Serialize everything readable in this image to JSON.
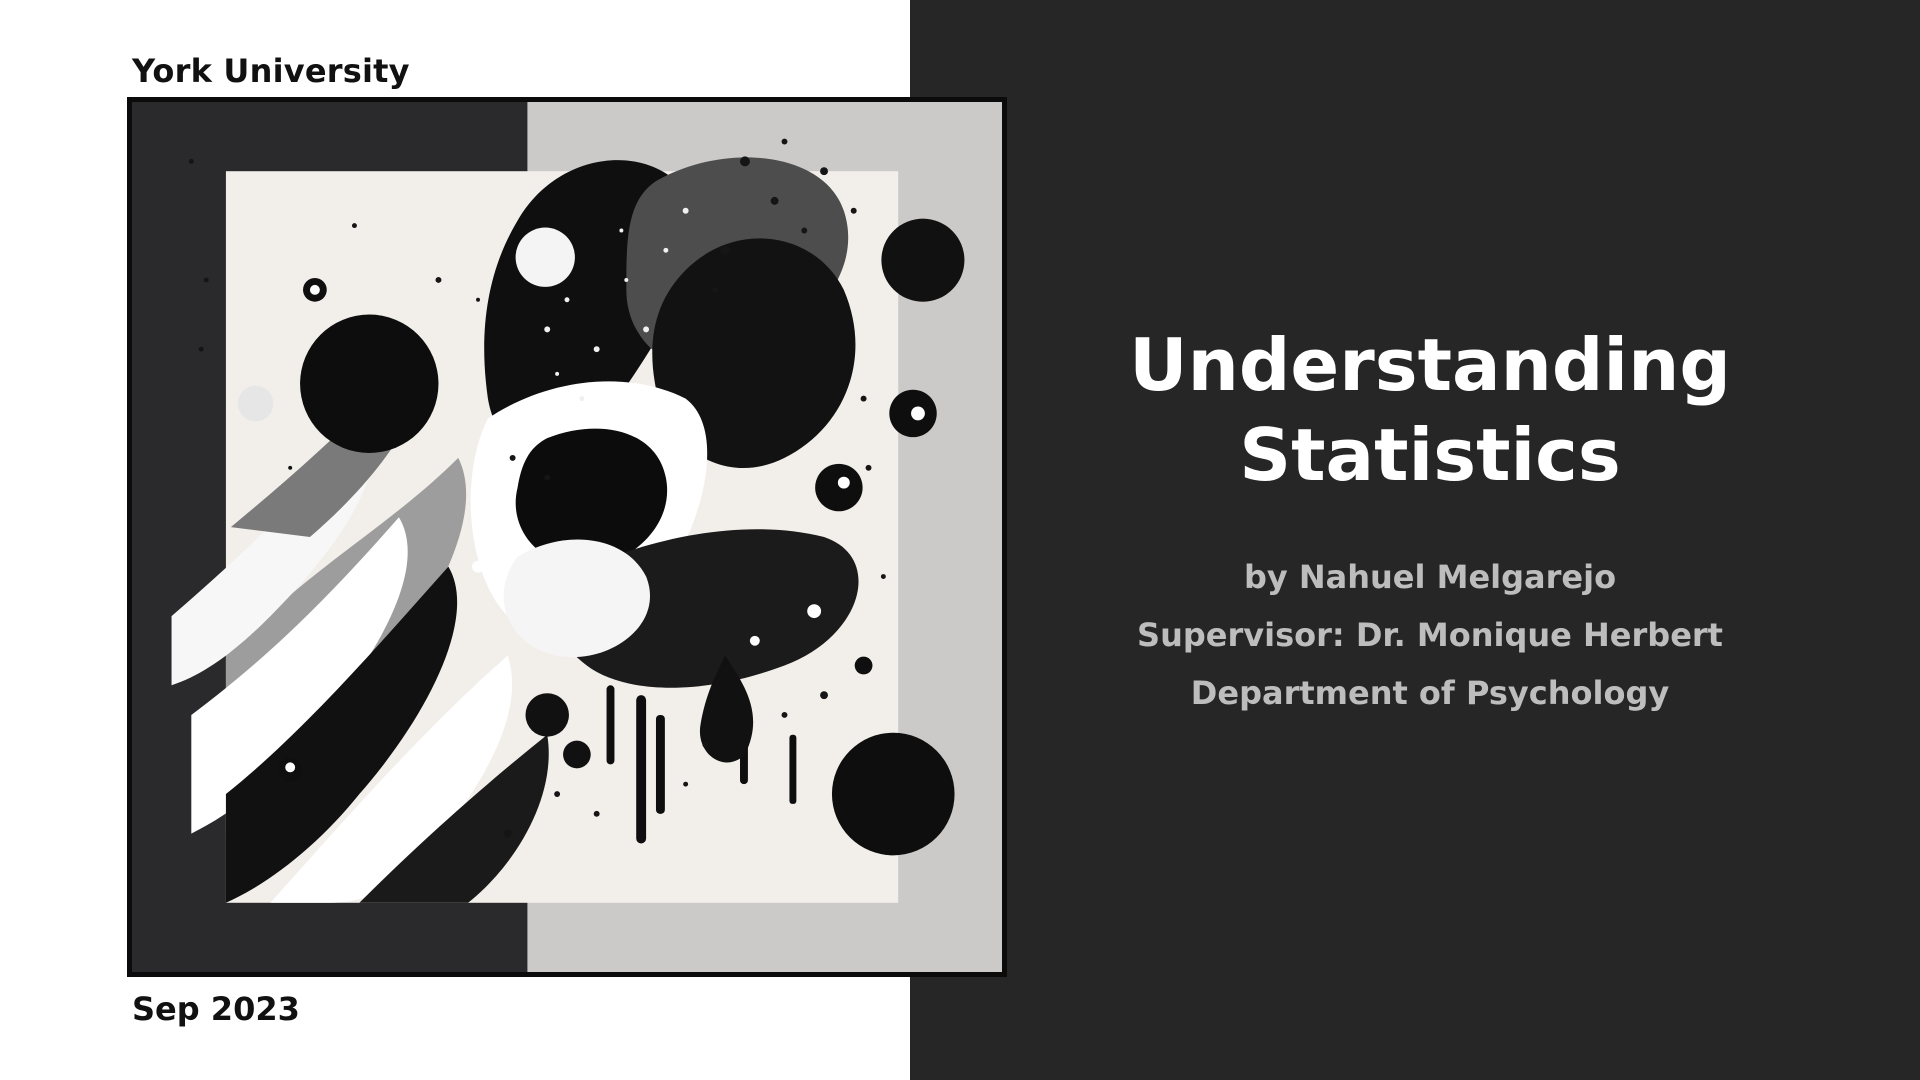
{
  "slide": {
    "institution": "York University",
    "date": "Sep 2023",
    "title_lines": [
      "Understanding",
      "Statistics"
    ],
    "author": "by Nahuel Melgarejo",
    "supervisor": "Supervisor: Dr. Monique Herbert",
    "department": "Department of Psychology"
  },
  "colors": {
    "dark_panel": "#262626",
    "title": "#ffffff",
    "meta_text": "#bdbdbd",
    "label_text": "#111111"
  },
  "artwork": {
    "icon": "abstract-art-image"
  }
}
